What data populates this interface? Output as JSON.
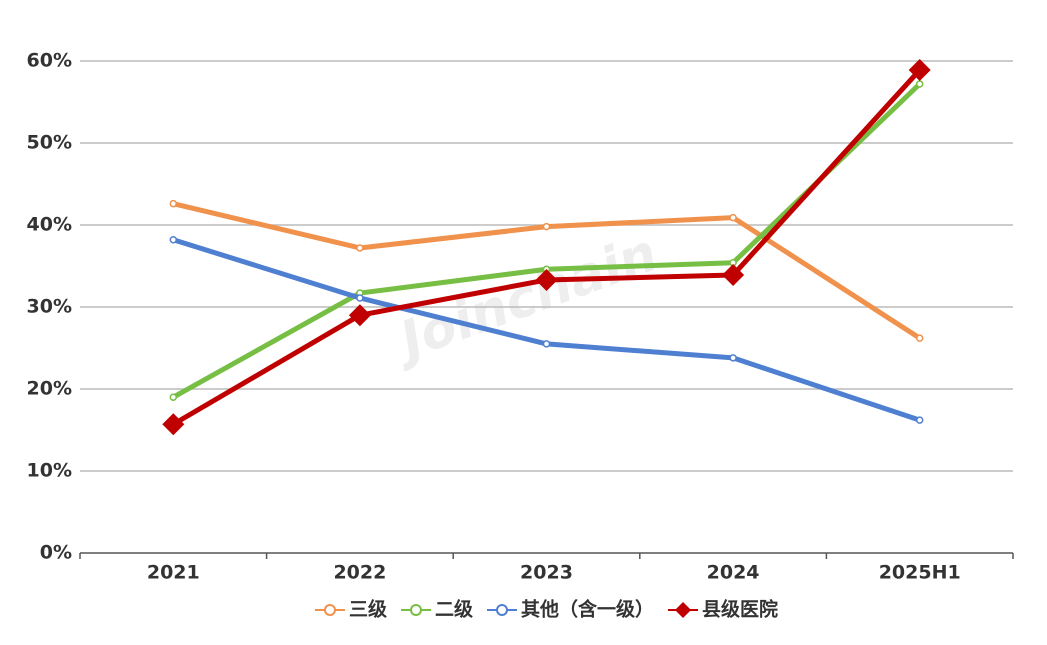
{
  "chart_data": {
    "type": "line",
    "watermark": "Joinchain",
    "categories": [
      "2021",
      "2022",
      "2023",
      "2024",
      "2025H1"
    ],
    "series": [
      {
        "name": "三级",
        "color": "#f0914c",
        "marker": "circle",
        "values": [
          42.6,
          37.2,
          39.8,
          40.9,
          26.2
        ]
      },
      {
        "name": "二级",
        "color": "#77bf44",
        "marker": "circle",
        "values": [
          19.0,
          31.7,
          34.6,
          35.4,
          57.2
        ]
      },
      {
        "name": "其他（含一级）",
        "color": "#4f7fd0",
        "marker": "circle",
        "values": [
          38.2,
          31.1,
          25.5,
          23.8,
          16.2
        ]
      },
      {
        "name": "县级医院",
        "color": "#c00000",
        "marker": "diamond",
        "values": [
          15.7,
          29.0,
          33.3,
          33.9,
          58.9
        ]
      }
    ],
    "ylim": [
      0,
      60
    ],
    "yticks": [
      {
        "value": 0,
        "label": "0%"
      },
      {
        "value": 10,
        "label": "10%"
      },
      {
        "value": 20,
        "label": "20%"
      },
      {
        "value": 30,
        "label": "30%"
      },
      {
        "value": 40,
        "label": "40%"
      },
      {
        "value": 50,
        "label": "50%"
      },
      {
        "value": 60,
        "label": "60%"
      }
    ],
    "grid": true,
    "legend": "bottom"
  }
}
